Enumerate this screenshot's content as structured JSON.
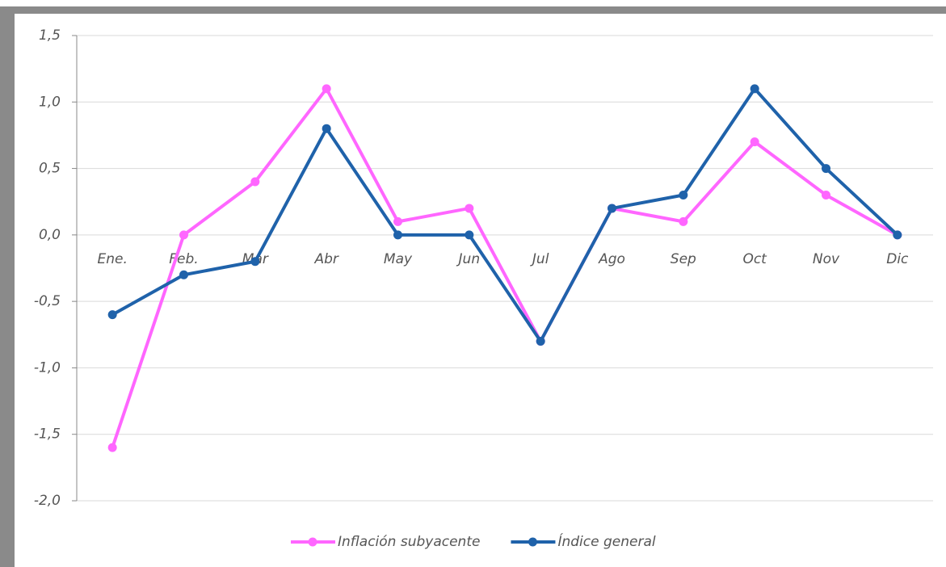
{
  "chart_data": {
    "type": "line",
    "categories": [
      "Ene.",
      "Feb.",
      "Mar",
      "Abr",
      "May",
      "Jun",
      "Jul",
      "Ago",
      "Sep",
      "Oct",
      "Nov",
      "Dic"
    ],
    "series": [
      {
        "name": "Inflación subyacente",
        "color": "#ff66ff",
        "values": [
          -1.6,
          0,
          0.4,
          1.1,
          0.1,
          0.2,
          -0.8,
          0.2,
          0.1,
          0.7,
          0.3,
          0
        ]
      },
      {
        "name": "Índice general",
        "color": "#1f62aa",
        "values": [
          -0.6,
          -0.3,
          -0.2,
          0.8,
          0,
          0,
          -0.8,
          0.2,
          0.3,
          1.1,
          0.5,
          0
        ]
      }
    ],
    "ylim": [
      -2,
      1.5
    ],
    "yticks": [
      {
        "value": -2,
        "label": "-2,0"
      },
      {
        "value": -1.5,
        "label": "-1,5"
      },
      {
        "value": -1,
        "label": "-1,0"
      },
      {
        "value": -0.5,
        "label": "-0,5"
      },
      {
        "value": 0,
        "label": "0,0"
      },
      {
        "value": 0.5,
        "label": "0,5"
      },
      {
        "value": 1,
        "label": "1,0"
      },
      {
        "value": 1.5,
        "label": "1,5"
      }
    ],
    "grid": true,
    "legend": "bottom"
  }
}
